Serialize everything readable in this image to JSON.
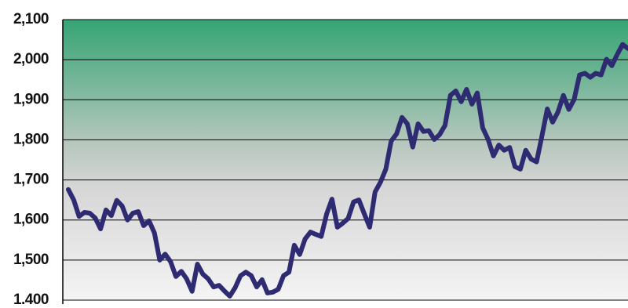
{
  "chart_data": {
    "type": "line",
    "values": [
      1676,
      1650,
      1609,
      1619,
      1617,
      1605,
      1578,
      1625,
      1611,
      1649,
      1635,
      1600,
      1617,
      1621,
      1586,
      1598,
      1568,
      1500,
      1515,
      1496,
      1459,
      1472,
      1453,
      1422,
      1490,
      1465,
      1453,
      1433,
      1437,
      1423,
      1410,
      1431,
      1461,
      1470,
      1461,
      1433,
      1451,
      1418,
      1420,
      1427,
      1461,
      1470,
      1537,
      1514,
      1553,
      1570,
      1564,
      1559,
      1615,
      1652,
      1582,
      1592,
      1604,
      1645,
      1650,
      1615,
      1582,
      1670,
      1694,
      1727,
      1797,
      1815,
      1856,
      1840,
      1782,
      1840,
      1821,
      1823,
      1801,
      1813,
      1836,
      1911,
      1922,
      1895,
      1926,
      1889,
      1917,
      1830,
      1801,
      1760,
      1787,
      1774,
      1781,
      1733,
      1727,
      1774,
      1752,
      1745,
      1809,
      1877,
      1844,
      1870,
      1911,
      1876,
      1901,
      1962,
      1966,
      1956,
      1966,
      1962,
      2001,
      1985,
      2013,
      2038,
      2028
    ],
    "color": "#2f2b72",
    "ylim": [
      1400,
      2100
    ],
    "yticks": [
      {
        "value": 1400,
        "label": "1,400"
      },
      {
        "value": 1500,
        "label": "1,500"
      },
      {
        "value": 1600,
        "label": "1,600"
      },
      {
        "value": 1700,
        "label": "1,700"
      },
      {
        "value": 1800,
        "label": "1,800"
      },
      {
        "value": 1900,
        "label": "1,900"
      },
      {
        "value": 2000,
        "label": "2,000"
      },
      {
        "value": 2100,
        "label": "2,100"
      }
    ],
    "grid": true
  }
}
